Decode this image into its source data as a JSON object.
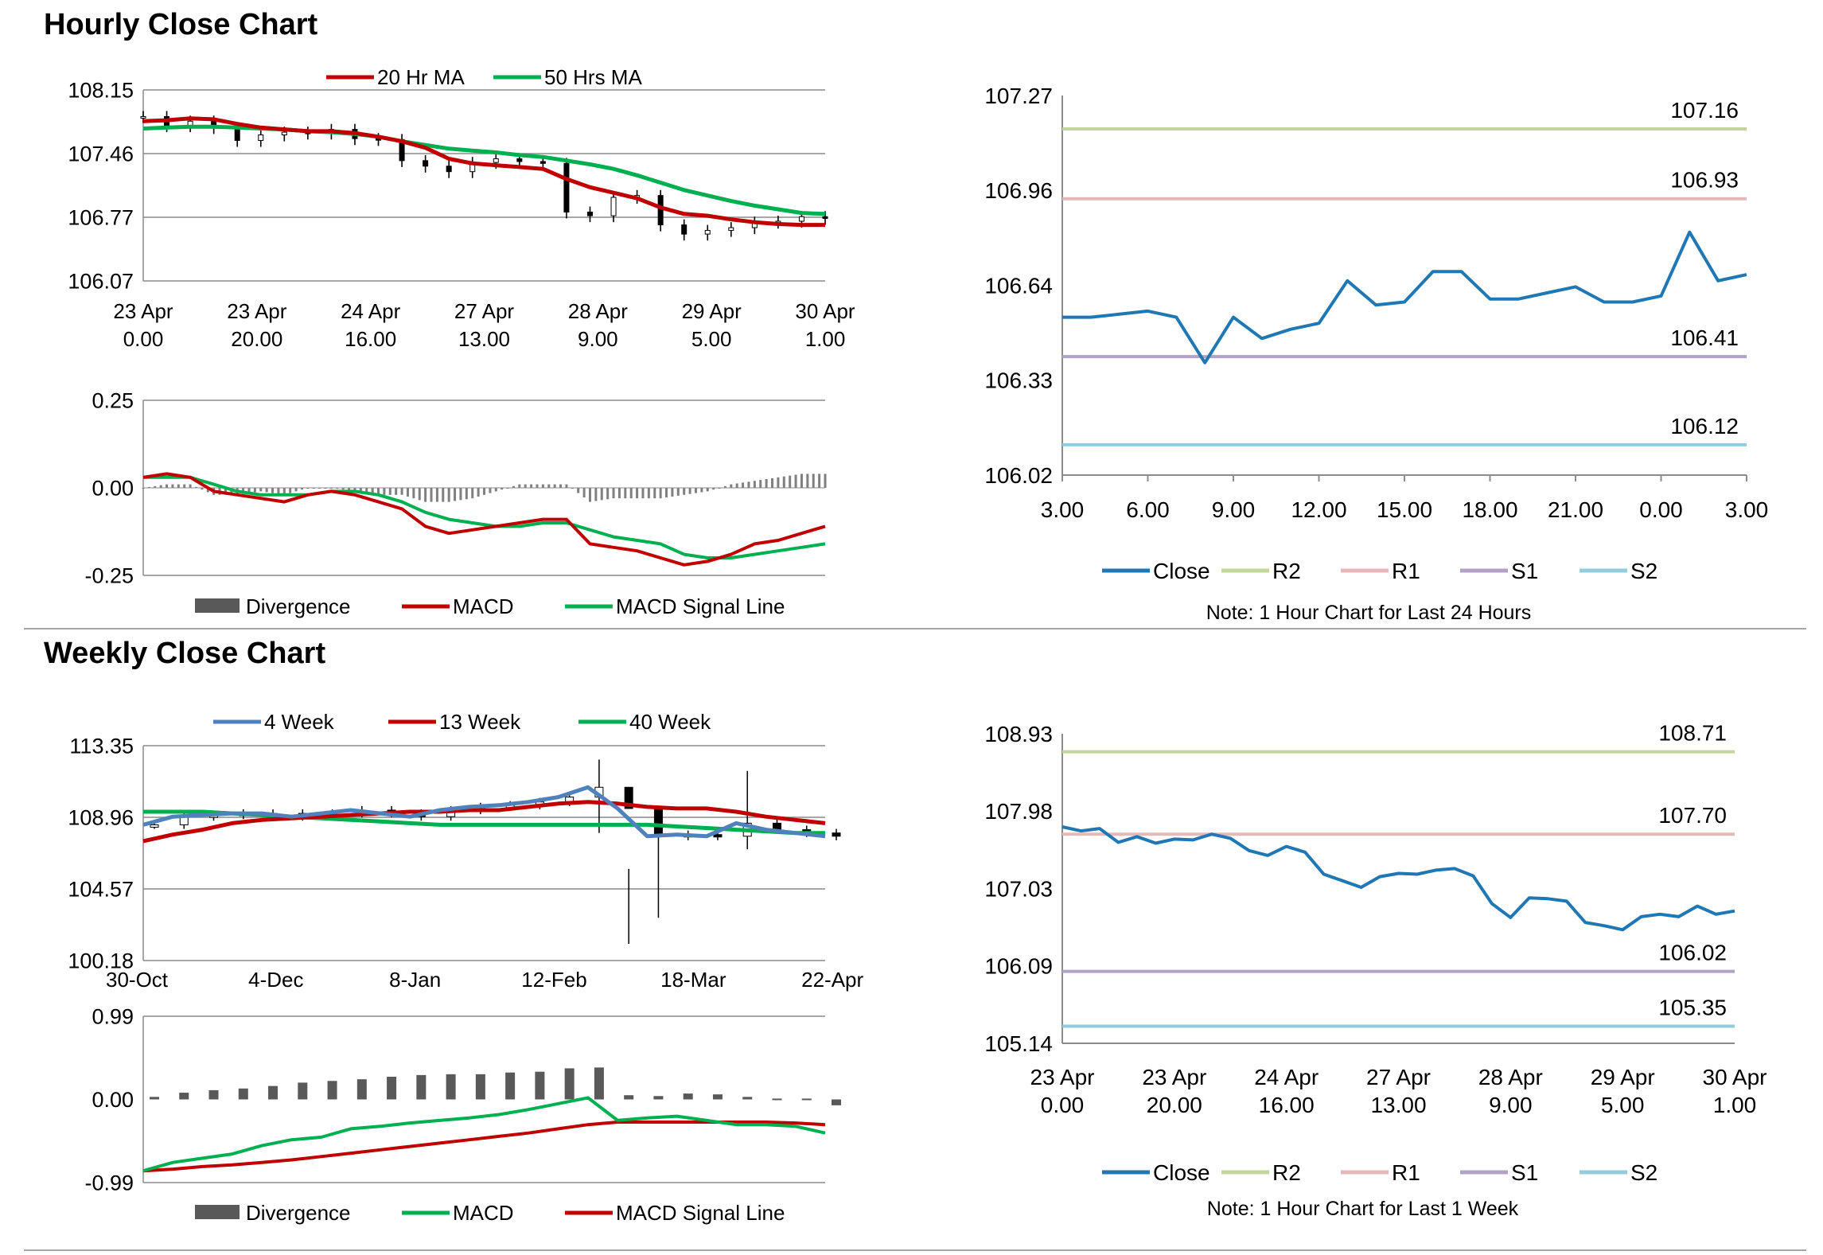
{
  "sections": {
    "hourly_title": "Hourly Close Chart",
    "weekly_title": "Weekly Close Chart"
  },
  "colors": {
    "ma20": "#c00000",
    "ma50": "#00b050",
    "close": "#1f77b4",
    "r2": "#c3d69b",
    "r1": "#e6b9b8",
    "s1": "#b3a2c7",
    "s2": "#93cddd",
    "w4": "#4f81bd",
    "w13": "#c00000",
    "w40": "#00b050",
    "divergence": "#595959"
  },
  "chart_data": [
    {
      "id": "hourly-price",
      "type": "line",
      "candles": true,
      "ylim": [
        106.07,
        108.15
      ],
      "y_ticks": [
        "108.15",
        "107.46",
        "106.77",
        "106.07"
      ],
      "x_ticks": [
        [
          "23 Apr",
          "0.00"
        ],
        [
          "23 Apr",
          "20.00"
        ],
        [
          "24 Apr",
          "16.00"
        ],
        [
          "27 Apr",
          "13.00"
        ],
        [
          "28 Apr",
          "9.00"
        ],
        [
          "29 Apr",
          "5.00"
        ],
        [
          "30 Apr",
          "1.00"
        ]
      ],
      "legend": [
        "20 Hr MA",
        "50 Hrs MA"
      ],
      "series": [
        {
          "name": "20 Hr MA",
          "color_key": "ma20",
          "values": [
            107.81,
            107.82,
            107.84,
            107.83,
            107.78,
            107.74,
            107.72,
            107.7,
            107.7,
            107.68,
            107.64,
            107.59,
            107.52,
            107.4,
            107.35,
            107.33,
            107.31,
            107.29,
            107.18,
            107.09,
            107.03,
            106.97,
            106.87,
            106.8,
            106.78,
            106.74,
            106.71,
            106.69,
            106.68,
            106.68
          ]
        },
        {
          "name": "50 Hrs MA",
          "color_key": "ma50",
          "values": [
            107.73,
            107.74,
            107.75,
            107.75,
            107.74,
            107.73,
            107.72,
            107.7,
            107.69,
            107.67,
            107.64,
            107.59,
            107.55,
            107.51,
            107.49,
            107.47,
            107.44,
            107.42,
            107.38,
            107.34,
            107.29,
            107.22,
            107.14,
            107.06,
            107.0,
            106.94,
            106.89,
            106.85,
            106.81,
            106.8
          ]
        },
        {
          "name": "Close",
          "values": [
            107.86,
            107.76,
            107.81,
            107.74,
            107.6,
            107.66,
            107.69,
            107.68,
            107.72,
            107.62,
            107.61,
            107.38,
            107.32,
            107.26,
            107.36,
            107.4,
            107.37,
            107.35,
            106.82,
            106.78,
            106.98,
            107.0,
            106.68,
            106.58,
            106.62,
            106.65,
            106.71,
            106.72,
            106.77,
            106.75
          ]
        }
      ]
    },
    {
      "id": "hourly-macd",
      "type": "line",
      "ylim": [
        -0.25,
        0.25
      ],
      "y_ticks": [
        "0.25",
        "0.00",
        "-0.25"
      ],
      "legend": [
        "Divergence",
        "MACD",
        "MACD Signal Line"
      ],
      "series": [
        {
          "name": "MACD",
          "color_key": "ma20",
          "values": [
            0.03,
            0.04,
            0.03,
            -0.01,
            -0.02,
            -0.03,
            -0.04,
            -0.02,
            -0.01,
            -0.02,
            -0.04,
            -0.06,
            -0.11,
            -0.13,
            -0.12,
            -0.11,
            -0.1,
            -0.09,
            -0.09,
            -0.16,
            -0.17,
            -0.18,
            -0.2,
            -0.22,
            -0.21,
            -0.19,
            -0.16,
            -0.15,
            -0.13,
            -0.11
          ]
        },
        {
          "name": "MACD Signal Line",
          "color_key": "ma50",
          "values": [
            0.03,
            0.03,
            0.03,
            0.01,
            -0.01,
            -0.02,
            -0.02,
            -0.02,
            -0.01,
            -0.01,
            -0.02,
            -0.04,
            -0.07,
            -0.09,
            -0.1,
            -0.11,
            -0.11,
            -0.1,
            -0.1,
            -0.12,
            -0.14,
            -0.15,
            -0.16,
            -0.19,
            -0.2,
            -0.2,
            -0.19,
            -0.18,
            -0.17,
            -0.16
          ]
        },
        {
          "name": "Divergence",
          "color_key": "divergence",
          "values": [
            0.0,
            0.01,
            0.01,
            -0.02,
            -0.02,
            -0.01,
            -0.02,
            0.0,
            0.0,
            -0.01,
            -0.02,
            -0.02,
            -0.04,
            -0.04,
            -0.03,
            -0.01,
            0.01,
            0.01,
            0.01,
            -0.04,
            -0.03,
            -0.03,
            -0.03,
            -0.02,
            -0.01,
            0.01,
            0.02,
            0.03,
            0.04,
            0.04
          ]
        }
      ]
    },
    {
      "id": "hourly-levels",
      "type": "line",
      "ylim": [
        106.02,
        107.27
      ],
      "y_ticks": [
        "107.27",
        "106.96",
        "106.64",
        "106.33",
        "106.02"
      ],
      "x_ticks": [
        "3.00",
        "6.00",
        "9.00",
        "12.00",
        "15.00",
        "18.00",
        "21.00",
        "0.00",
        "3.00"
      ],
      "x_hours": [
        3,
        4,
        5,
        6,
        7,
        8,
        9,
        10,
        11,
        12,
        13,
        14,
        15,
        16,
        17,
        18,
        19,
        20,
        21,
        22,
        23,
        24,
        25,
        26,
        27
      ],
      "series": [
        {
          "name": "Close",
          "color_key": "close",
          "values": [
            106.54,
            106.54,
            106.55,
            106.56,
            106.54,
            106.39,
            106.54,
            106.47,
            106.5,
            106.52,
            106.66,
            106.58,
            106.59,
            106.69,
            106.69,
            106.6,
            106.6,
            106.62,
            106.64,
            106.59,
            106.59,
            106.61,
            106.82,
            106.66,
            106.68
          ]
        },
        {
          "name": "R2",
          "color_key": "r2",
          "level": 107.16,
          "label": "107.16"
        },
        {
          "name": "R1",
          "color_key": "r1",
          "level": 106.93,
          "label": "106.93"
        },
        {
          "name": "S1",
          "color_key": "s1",
          "level": 106.41,
          "label": "106.41"
        },
        {
          "name": "S2",
          "color_key": "s2",
          "level": 106.12,
          "label": "106.12"
        }
      ],
      "legend": [
        "Close",
        "R2",
        "R1",
        "S1",
        "S2"
      ],
      "note": "Note: 1 Hour Chart for Last 24 Hours"
    },
    {
      "id": "weekly-price",
      "type": "line",
      "candles": true,
      "ylim": [
        100.18,
        113.35
      ],
      "y_ticks": [
        "113.35",
        "108.96",
        "104.57",
        "100.18"
      ],
      "x_ticks": [
        "30-Oct",
        "4-Dec",
        "8-Jan",
        "12-Feb",
        "18-Mar",
        "22-Apr"
      ],
      "legend": [
        "4 Week",
        "13 Week",
        "40 Week"
      ],
      "series": [
        {
          "name": "4 Week",
          "color_key": "w4",
          "values": [
            108.5,
            109.0,
            109.1,
            109.2,
            109.2,
            109.0,
            109.2,
            109.4,
            109.2,
            109.0,
            109.4,
            109.6,
            109.7,
            109.9,
            110.2,
            110.8,
            109.5,
            107.8,
            107.9,
            107.8,
            108.6,
            108.2,
            108.0,
            107.8
          ]
        },
        {
          "name": "13 Week",
          "color_key": "w13",
          "values": [
            107.5,
            107.9,
            108.2,
            108.6,
            108.8,
            108.9,
            109.0,
            109.1,
            109.2,
            109.3,
            109.3,
            109.4,
            109.4,
            109.6,
            109.8,
            109.9,
            109.8,
            109.6,
            109.5,
            109.5,
            109.3,
            109.0,
            108.8,
            108.6
          ]
        },
        {
          "name": "40 Week",
          "color_key": "w40",
          "values": [
            109.3,
            109.3,
            109.3,
            109.2,
            109.1,
            109.0,
            108.9,
            108.8,
            108.7,
            108.6,
            108.5,
            108.5,
            108.5,
            108.5,
            108.5,
            108.5,
            108.5,
            108.5,
            108.4,
            108.3,
            108.2,
            108.1,
            108.0,
            108.0
          ]
        }
      ]
    },
    {
      "id": "weekly-macd",
      "type": "line",
      "ylim": [
        -0.99,
        0.99
      ],
      "y_ticks": [
        "0.99",
        "0.00",
        "-0.99"
      ],
      "legend": [
        "Divergence",
        "MACD",
        "MACD Signal Line"
      ],
      "series": [
        {
          "name": "MACD",
          "color_key": "w40",
          "values": [
            -0.85,
            -0.75,
            -0.7,
            -0.65,
            -0.55,
            -0.48,
            -0.45,
            -0.35,
            -0.32,
            -0.28,
            -0.25,
            -0.22,
            -0.18,
            -0.12,
            -0.05,
            0.02,
            -0.25,
            -0.22,
            -0.2,
            -0.25,
            -0.3,
            -0.3,
            -0.32,
            -0.4
          ]
        },
        {
          "name": "MACD Signal Line",
          "color_key": "w13",
          "values": [
            -0.85,
            -0.83,
            -0.8,
            -0.78,
            -0.75,
            -0.72,
            -0.68,
            -0.64,
            -0.6,
            -0.56,
            -0.52,
            -0.48,
            -0.44,
            -0.4,
            -0.35,
            -0.3,
            -0.27,
            -0.27,
            -0.27,
            -0.27,
            -0.27,
            -0.27,
            -0.28,
            -0.3
          ]
        },
        {
          "name": "Divergence",
          "color_key": "divergence",
          "values": [
            0.03,
            0.08,
            0.11,
            0.13,
            0.16,
            0.2,
            0.22,
            0.24,
            0.27,
            0.29,
            0.3,
            0.3,
            0.32,
            0.33,
            0.37,
            0.38,
            0.05,
            0.04,
            0.07,
            0.06,
            0.03,
            0.01,
            0.01,
            -0.07
          ]
        }
      ]
    },
    {
      "id": "weekly-levels",
      "type": "line",
      "ylim": [
        105.14,
        108.93
      ],
      "y_ticks": [
        "108.93",
        "107.98",
        "107.03",
        "106.09",
        "105.14"
      ],
      "x_ticks": [
        [
          "23 Apr",
          "0.00"
        ],
        [
          "23 Apr",
          "20.00"
        ],
        [
          "24 Apr",
          "16.00"
        ],
        [
          "27 Apr",
          "13.00"
        ],
        [
          "28 Apr",
          "9.00"
        ],
        [
          "29 Apr",
          "5.00"
        ],
        [
          "30 Apr",
          "1.00"
        ]
      ],
      "series": [
        {
          "name": "Close",
          "color_key": "close",
          "values": [
            107.79,
            107.74,
            107.77,
            107.6,
            107.67,
            107.59,
            107.64,
            107.63,
            107.7,
            107.65,
            107.5,
            107.44,
            107.55,
            107.48,
            107.21,
            107.13,
            107.05,
            107.18,
            107.22,
            107.21,
            107.26,
            107.28,
            107.19,
            106.85,
            106.68,
            106.92,
            106.91,
            106.88,
            106.62,
            106.58,
            106.53,
            106.69,
            106.72,
            106.69,
            106.82,
            106.72,
            106.76
          ]
        },
        {
          "name": "R2",
          "color_key": "r2",
          "level": 108.71,
          "label": "108.71"
        },
        {
          "name": "R1",
          "color_key": "r1",
          "level": 107.7,
          "label": "107.70"
        },
        {
          "name": "S1",
          "color_key": "s1",
          "level": 106.02,
          "label": "106.02"
        },
        {
          "name": "S2",
          "color_key": "s2",
          "level": 105.35,
          "label": "105.35"
        }
      ],
      "legend": [
        "Close",
        "R2",
        "R1",
        "S1",
        "S2"
      ],
      "note": "Note: 1 Hour Chart for Last 1 Week"
    }
  ]
}
